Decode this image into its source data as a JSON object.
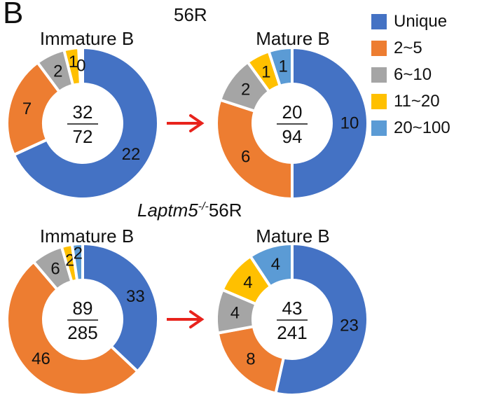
{
  "panel_letter": "B",
  "chart_data": [
    {
      "type": "pie",
      "variant": "donut",
      "condition": "56R",
      "title": "Immature B",
      "center_numerator": "32",
      "center_denominator": "72",
      "categories": [
        "Unique",
        "2~5",
        "6~10",
        "11~20",
        "20~100"
      ],
      "values": [
        22,
        7,
        2,
        1,
        0
      ],
      "labels": [
        "22",
        "7",
        "2",
        "1",
        "0"
      ]
    },
    {
      "type": "pie",
      "variant": "donut",
      "condition": "56R",
      "title": "Mature B",
      "center_numerator": "20",
      "center_denominator": "94",
      "categories": [
        "Unique",
        "2~5",
        "6~10",
        "11~20",
        "20~100"
      ],
      "values": [
        10,
        6,
        2,
        1,
        1
      ],
      "labels": [
        "10",
        "6",
        "2",
        "1",
        "1"
      ]
    },
    {
      "type": "pie",
      "variant": "donut",
      "condition": "Laptm5-/-56R",
      "title": "Immature B",
      "center_numerator": "89",
      "center_denominator": "285",
      "categories": [
        "Unique",
        "2~5",
        "6~10",
        "11~20",
        "20~100"
      ],
      "values": [
        33,
        46,
        6,
        2,
        2
      ],
      "labels": [
        "33",
        "46",
        "6",
        "2",
        "2"
      ]
    },
    {
      "type": "pie",
      "variant": "donut",
      "condition": "Laptm5-/-56R",
      "title": "Mature B",
      "center_numerator": "43",
      "center_denominator": "241",
      "categories": [
        "Unique",
        "2~5",
        "6~10",
        "11~20",
        "20~100"
      ],
      "values": [
        23,
        8,
        4,
        4,
        4
      ],
      "labels": [
        "23",
        "8",
        "4",
        "4",
        "4"
      ]
    }
  ],
  "conditions": {
    "top": "56R",
    "bottom_gene": "Laptm5",
    "bottom_superscript": "-/-",
    "bottom_suffix": "56R"
  },
  "legend": {
    "items": [
      {
        "label": "Unique",
        "color": "#4472c4"
      },
      {
        "label": "2~5",
        "color": "#ed7d31"
      },
      {
        "label": "6~10",
        "color": "#a5a5a5"
      },
      {
        "label": "11~20",
        "color": "#ffc000"
      },
      {
        "label": "20~100",
        "color": "#5b9bd5"
      }
    ]
  }
}
